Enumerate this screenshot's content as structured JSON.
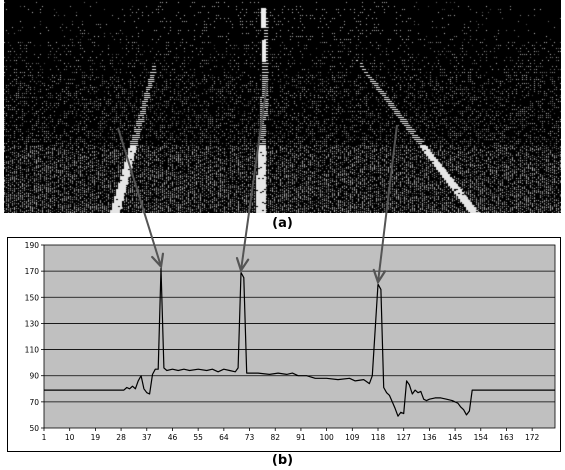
{
  "captions": {
    "top": "(a)",
    "bottom": "(b)"
  },
  "photo": {
    "description_icon": "lidar-point-cloud-road"
  },
  "colors": {
    "plot_background": "#c0c0c0",
    "series": "#000000",
    "arrow": "#555555",
    "gridline": "#000000"
  },
  "chart_data": {
    "type": "line",
    "title": "",
    "xlabel": "",
    "ylabel": "",
    "ylim": [
      50,
      190
    ],
    "xlim": [
      1,
      180
    ],
    "grid": "horizontal",
    "legend": "none",
    "y_ticks": [
      "190",
      "170",
      "150",
      "130",
      "110",
      "90",
      "70",
      "50"
    ],
    "x_ticks": [
      "1",
      "10",
      "19",
      "28",
      "37",
      "46",
      "55",
      "64",
      "73",
      "82",
      "91",
      "100",
      "109",
      "118",
      "127",
      "136",
      "145",
      "154",
      "163",
      "172"
    ],
    "series": [
      {
        "values": [
          [
            1,
            79
          ],
          [
            29,
            79
          ],
          [
            30,
            81
          ],
          [
            31,
            80
          ],
          [
            32,
            82
          ],
          [
            33,
            80
          ],
          [
            34,
            86
          ],
          [
            35,
            90
          ],
          [
            36,
            80
          ],
          [
            37,
            77
          ],
          [
            38,
            76
          ],
          [
            39,
            91
          ],
          [
            40,
            95
          ],
          [
            41,
            95
          ],
          [
            42,
            172
          ],
          [
            43,
            96
          ],
          [
            44,
            94
          ],
          [
            46,
            95
          ],
          [
            48,
            94
          ],
          [
            50,
            95
          ],
          [
            52,
            94
          ],
          [
            55,
            95
          ],
          [
            58,
            94
          ],
          [
            60,
            95
          ],
          [
            62,
            93
          ],
          [
            64,
            95
          ],
          [
            66,
            94
          ],
          [
            68,
            93
          ],
          [
            69,
            96
          ],
          [
            70,
            169
          ],
          [
            71,
            165
          ],
          [
            72,
            92
          ],
          [
            76,
            92
          ],
          [
            80,
            91
          ],
          [
            83,
            92
          ],
          [
            86,
            91
          ],
          [
            88,
            92
          ],
          [
            90,
            90
          ],
          [
            93,
            90
          ],
          [
            96,
            88
          ],
          [
            100,
            88
          ],
          [
            104,
            87
          ],
          [
            108,
            88
          ],
          [
            110,
            86
          ],
          [
            113,
            87
          ],
          [
            115,
            84
          ],
          [
            116,
            90
          ],
          [
            118,
            160
          ],
          [
            119,
            156
          ],
          [
            120,
            81
          ],
          [
            121,
            77
          ],
          [
            122,
            75
          ],
          [
            123,
            70
          ],
          [
            124,
            65
          ],
          [
            125,
            59
          ],
          [
            126,
            62
          ],
          [
            127,
            61
          ],
          [
            128,
            86
          ],
          [
            129,
            83
          ],
          [
            130,
            76
          ],
          [
            131,
            79
          ],
          [
            132,
            77
          ],
          [
            133,
            78
          ],
          [
            134,
            72
          ],
          [
            135,
            71
          ],
          [
            136,
            72
          ],
          [
            138,
            73
          ],
          [
            140,
            73
          ],
          [
            142,
            72
          ],
          [
            144,
            71
          ],
          [
            146,
            69
          ],
          [
            147,
            66
          ],
          [
            148,
            64
          ],
          [
            149,
            60
          ],
          [
            150,
            63
          ],
          [
            151,
            79
          ],
          [
            180,
            79
          ]
        ]
      }
    ]
  },
  "arrows": [
    {
      "target_x": 42
    },
    {
      "target_x": 70
    },
    {
      "target_x": 118
    }
  ]
}
